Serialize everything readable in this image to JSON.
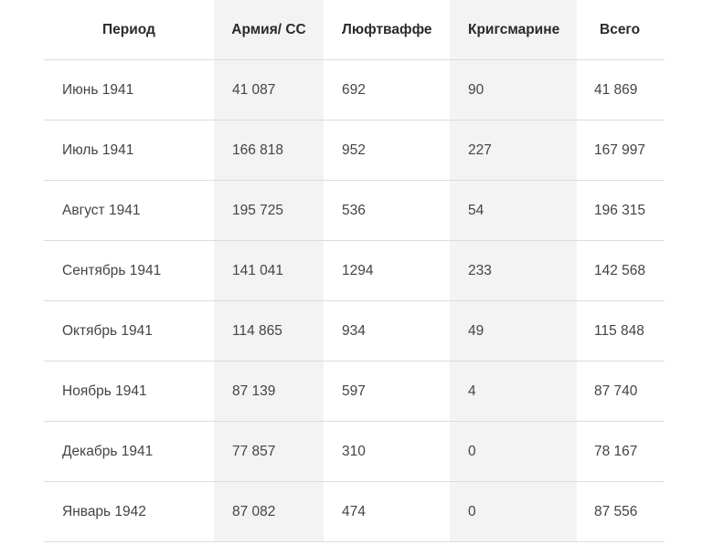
{
  "table": {
    "headers": [
      "Период",
      "Армия/ СС",
      "Люфтваффе",
      "Кригсмарине",
      "Всего"
    ],
    "rows": [
      [
        "Июнь 1941",
        "41 087",
        "692",
        "90",
        "41 869"
      ],
      [
        "Июль 1941",
        "166 818",
        "952",
        "227",
        "167 997"
      ],
      [
        "Август 1941",
        "195 725",
        "536",
        "54",
        "196 315"
      ],
      [
        "Сентябрь 1941",
        "141 041",
        "1294",
        "233",
        "142 568"
      ],
      [
        "Октябрь 1941",
        "114 865",
        "934",
        "49",
        "115 848"
      ],
      [
        "Ноябрь 1941",
        "87 139",
        "597",
        "4",
        "87 740"
      ],
      [
        "Декабрь 1941",
        "77 857",
        "310",
        "0",
        "78 167"
      ],
      [
        "Январь 1942",
        "87 082",
        "474",
        "0",
        "87 556"
      ]
    ]
  }
}
